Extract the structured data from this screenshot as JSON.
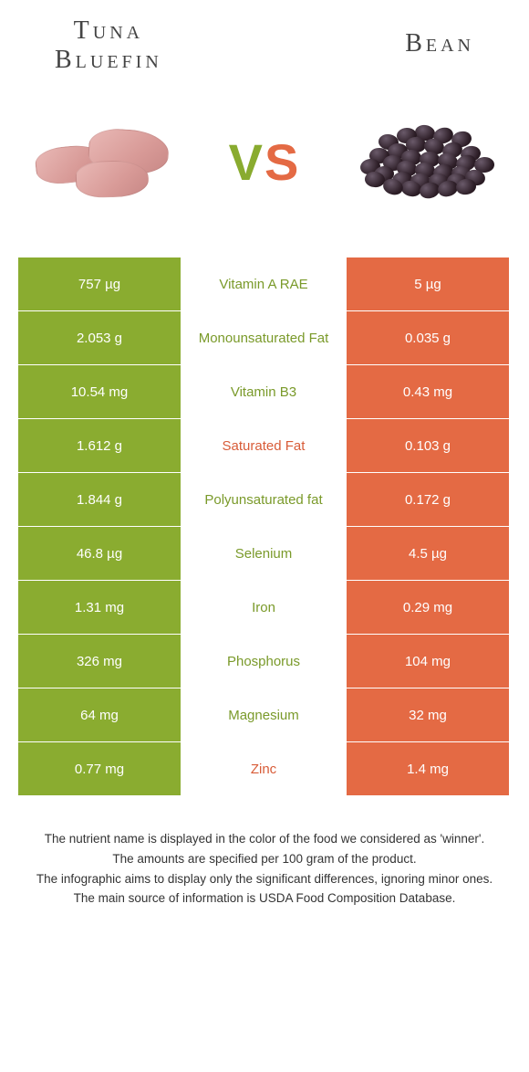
{
  "header": {
    "left_title": "Tuna\nBluefin",
    "right_title": "Bean",
    "vs_v": "V",
    "vs_s": "S"
  },
  "colors": {
    "green": "#8aac30",
    "orange": "#e46a44",
    "nutrient_green_text": "#7a9a2a",
    "nutrient_orange_text": "#d85c38",
    "background": "#ffffff"
  },
  "table": {
    "rows": [
      {
        "left": "757 µg",
        "name": "Vitamin A RAE",
        "right": "5 µg",
        "winner": "green"
      },
      {
        "left": "2.053 g",
        "name": "Monounsaturated Fat",
        "right": "0.035 g",
        "winner": "green"
      },
      {
        "left": "10.54 mg",
        "name": "Vitamin B3",
        "right": "0.43 mg",
        "winner": "green"
      },
      {
        "left": "1.612 g",
        "name": "Saturated Fat",
        "right": "0.103 g",
        "winner": "orange"
      },
      {
        "left": "1.844 g",
        "name": "Polyunsaturated fat",
        "right": "0.172 g",
        "winner": "green"
      },
      {
        "left": "46.8 µg",
        "name": "Selenium",
        "right": "4.5 µg",
        "winner": "green"
      },
      {
        "left": "1.31 mg",
        "name": "Iron",
        "right": "0.29 mg",
        "winner": "green"
      },
      {
        "left": "326 mg",
        "name": "Phosphorus",
        "right": "104 mg",
        "winner": "green"
      },
      {
        "left": "64 mg",
        "name": "Magnesium",
        "right": "32 mg",
        "winner": "green"
      },
      {
        "left": "0.77 mg",
        "name": "Zinc",
        "right": "1.4 mg",
        "winner": "orange"
      }
    ]
  },
  "footer": {
    "line1": "The nutrient name is displayed in the color of the food we considered as 'winner'.",
    "line2": "The amounts are specified per 100 gram of the product.",
    "line3": "The infographic aims to display only the significant differences, ignoring minor ones.",
    "line4": "The main source of information is USDA Food Composition Database."
  }
}
